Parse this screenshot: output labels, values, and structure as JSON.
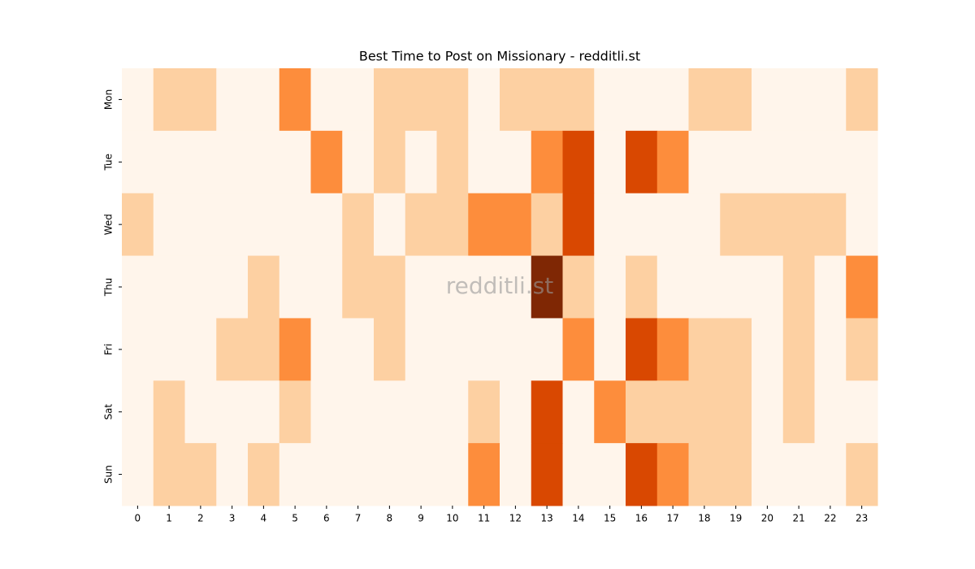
{
  "chart_data": {
    "type": "heatmap",
    "title": "Best Time to Post on Missionary - redditli.st",
    "watermark": "redditli.st",
    "x": [
      "0",
      "1",
      "2",
      "3",
      "4",
      "5",
      "6",
      "7",
      "8",
      "9",
      "10",
      "11",
      "12",
      "13",
      "14",
      "15",
      "16",
      "17",
      "18",
      "19",
      "20",
      "21",
      "22",
      "23"
    ],
    "y": [
      "Mon",
      "Tue",
      "Wed",
      "Thu",
      "Fri",
      "Sat",
      "Sun"
    ],
    "values": [
      [
        0,
        1,
        1,
        0,
        0,
        2,
        0,
        0,
        1,
        1,
        1,
        0,
        1,
        1,
        1,
        0,
        0,
        0,
        1,
        1,
        0,
        0,
        0,
        1
      ],
      [
        0,
        0,
        0,
        0,
        0,
        0,
        2,
        0,
        1,
        0,
        1,
        0,
        0,
        2,
        3,
        0,
        3,
        2,
        0,
        0,
        0,
        0,
        0,
        0
      ],
      [
        1,
        0,
        0,
        0,
        0,
        0,
        0,
        1,
        0,
        1,
        1,
        2,
        2,
        1,
        3,
        0,
        0,
        0,
        0,
        1,
        1,
        1,
        1,
        0
      ],
      [
        0,
        0,
        0,
        0,
        1,
        0,
        0,
        1,
        1,
        0,
        0,
        0,
        0,
        4,
        1,
        0,
        1,
        0,
        0,
        0,
        0,
        1,
        0,
        2
      ],
      [
        0,
        0,
        0,
        1,
        1,
        2,
        0,
        0,
        1,
        0,
        0,
        0,
        0,
        0,
        2,
        0,
        3,
        2,
        1,
        1,
        0,
        1,
        0,
        1
      ],
      [
        0,
        1,
        0,
        0,
        0,
        1,
        0,
        0,
        0,
        0,
        0,
        1,
        0,
        3,
        0,
        2,
        1,
        1,
        1,
        1,
        0,
        1,
        0,
        0
      ],
      [
        0,
        1,
        1,
        0,
        1,
        0,
        0,
        0,
        0,
        0,
        0,
        2,
        0,
        3,
        0,
        0,
        3,
        2,
        1,
        1,
        0,
        0,
        0,
        1
      ]
    ],
    "colormap": [
      "#fff5eb",
      "#fdd0a2",
      "#fd8d3c",
      "#d94801",
      "#7f2704"
    ]
  }
}
